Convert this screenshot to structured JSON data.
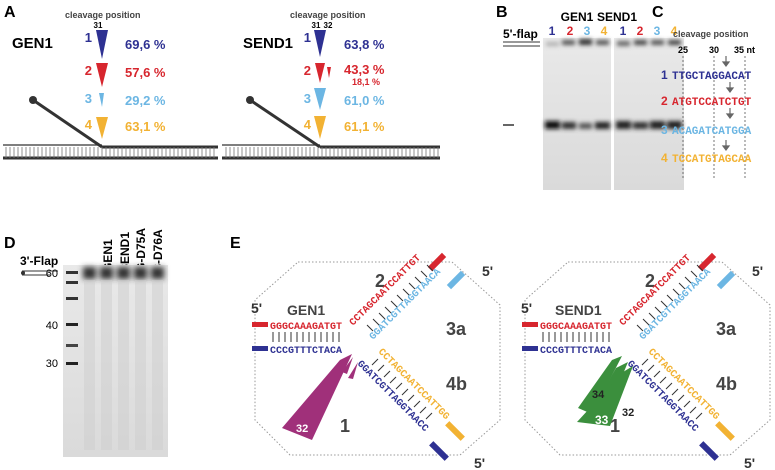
{
  "panels": {
    "A": "A",
    "B": "B",
    "C": "C",
    "D": "D",
    "E": "E"
  },
  "panel_a": {
    "cleavage_header": "cleavage position",
    "gen1": {
      "name": "GEN1",
      "pos_label": "31",
      "rows": [
        {
          "num": "1",
          "pct": "69,6 %",
          "color": "#2e3192"
        },
        {
          "num": "2",
          "pct": "57,6 %",
          "color": "#d7262e"
        },
        {
          "num": "3",
          "pct": "29,2 %",
          "color": "#6cb6e3"
        },
        {
          "num": "4",
          "pct": "63,1 %",
          "color": "#f2b233"
        }
      ]
    },
    "send1": {
      "name": "SEND1",
      "pos_label_1": "31",
      "pos_label_2": "32",
      "rows": [
        {
          "num": "1",
          "pct": "63,8 %",
          "color": "#2e3192"
        },
        {
          "num": "2",
          "pct": "43,3 %",
          "sub": "18,1 %",
          "color": "#d7262e"
        },
        {
          "num": "3",
          "pct": "61,0 %",
          "color": "#6cb6e3"
        },
        {
          "num": "4",
          "pct": "61,1 %",
          "color": "#f2b233"
        }
      ]
    }
  },
  "panel_b": {
    "flap_label": "5'-flap",
    "gen1_label": "GEN1",
    "send1_label": "SEND1",
    "lanes": [
      "1",
      "2",
      "3",
      "4"
    ]
  },
  "panel_c": {
    "header": "cleavage position",
    "ticks": [
      "25",
      "30",
      "35 nt"
    ],
    "rows": [
      {
        "num": "1",
        "seq": "TTGCTAGGACAT",
        "color": "#2e3192"
      },
      {
        "num": "2",
        "seq": "ATGTCCATCTGT",
        "color": "#d7262e"
      },
      {
        "num": "3",
        "seq": "ACAGATCATGGA",
        "color": "#6cb6e3"
      },
      {
        "num": "4",
        "seq": "TCCATGTAGCAA",
        "color": "#f2b233"
      }
    ]
  },
  "panel_d": {
    "substrate_label": "3'-Flap",
    "lanes": [
      "-",
      "GEN1",
      "SEND1",
      "G-D75A",
      "S-D76A"
    ],
    "markers": [
      "60",
      "40",
      "30"
    ]
  },
  "panel_e": {
    "gen1": {
      "name": "GEN1",
      "arm_labels": {
        "a2": "2",
        "a3a": "3a",
        "a4b": "4b",
        "a1": "1"
      },
      "five_prime": "5'",
      "seq_left_top": "GGGCAAAGATGT",
      "seq_left_bottom": "CCCGTTTCTACA",
      "seq_red": "CCTAGCAATCCATTGT",
      "seq_lightblue": "GGATCGTTAGGTAACA",
      "seq_yellow": "CCTAGCAATCCATTGG",
      "seq_navy": "GGATCGTTAGGTAACC",
      "arrow_big": "32"
    },
    "send1": {
      "name": "SEND1",
      "arm_labels": {
        "a2": "2",
        "a3a": "3a",
        "a4b": "4b",
        "a1": "1"
      },
      "five_prime": "5'",
      "seq_left_top": "GGGCAAAGATGT",
      "seq_left_bottom": "CCCGTTTCTACA",
      "seq_red": "CCTAGCAATCCATTGT",
      "seq_lightblue": "GGATCGTTAGGTAACA",
      "seq_yellow": "CCTAGCAATCCATTGG",
      "seq_navy": "GGATCGTTAGGTAACC",
      "arrow_a": "34",
      "arrow_b": "32",
      "arrow_c": "33"
    }
  },
  "colors": {
    "navy": "#2e3192",
    "red": "#d7262e",
    "lightblue": "#6cb6e3",
    "yellow": "#f2b233",
    "magenta": "#a0307a",
    "green": "#3b8f3d"
  }
}
